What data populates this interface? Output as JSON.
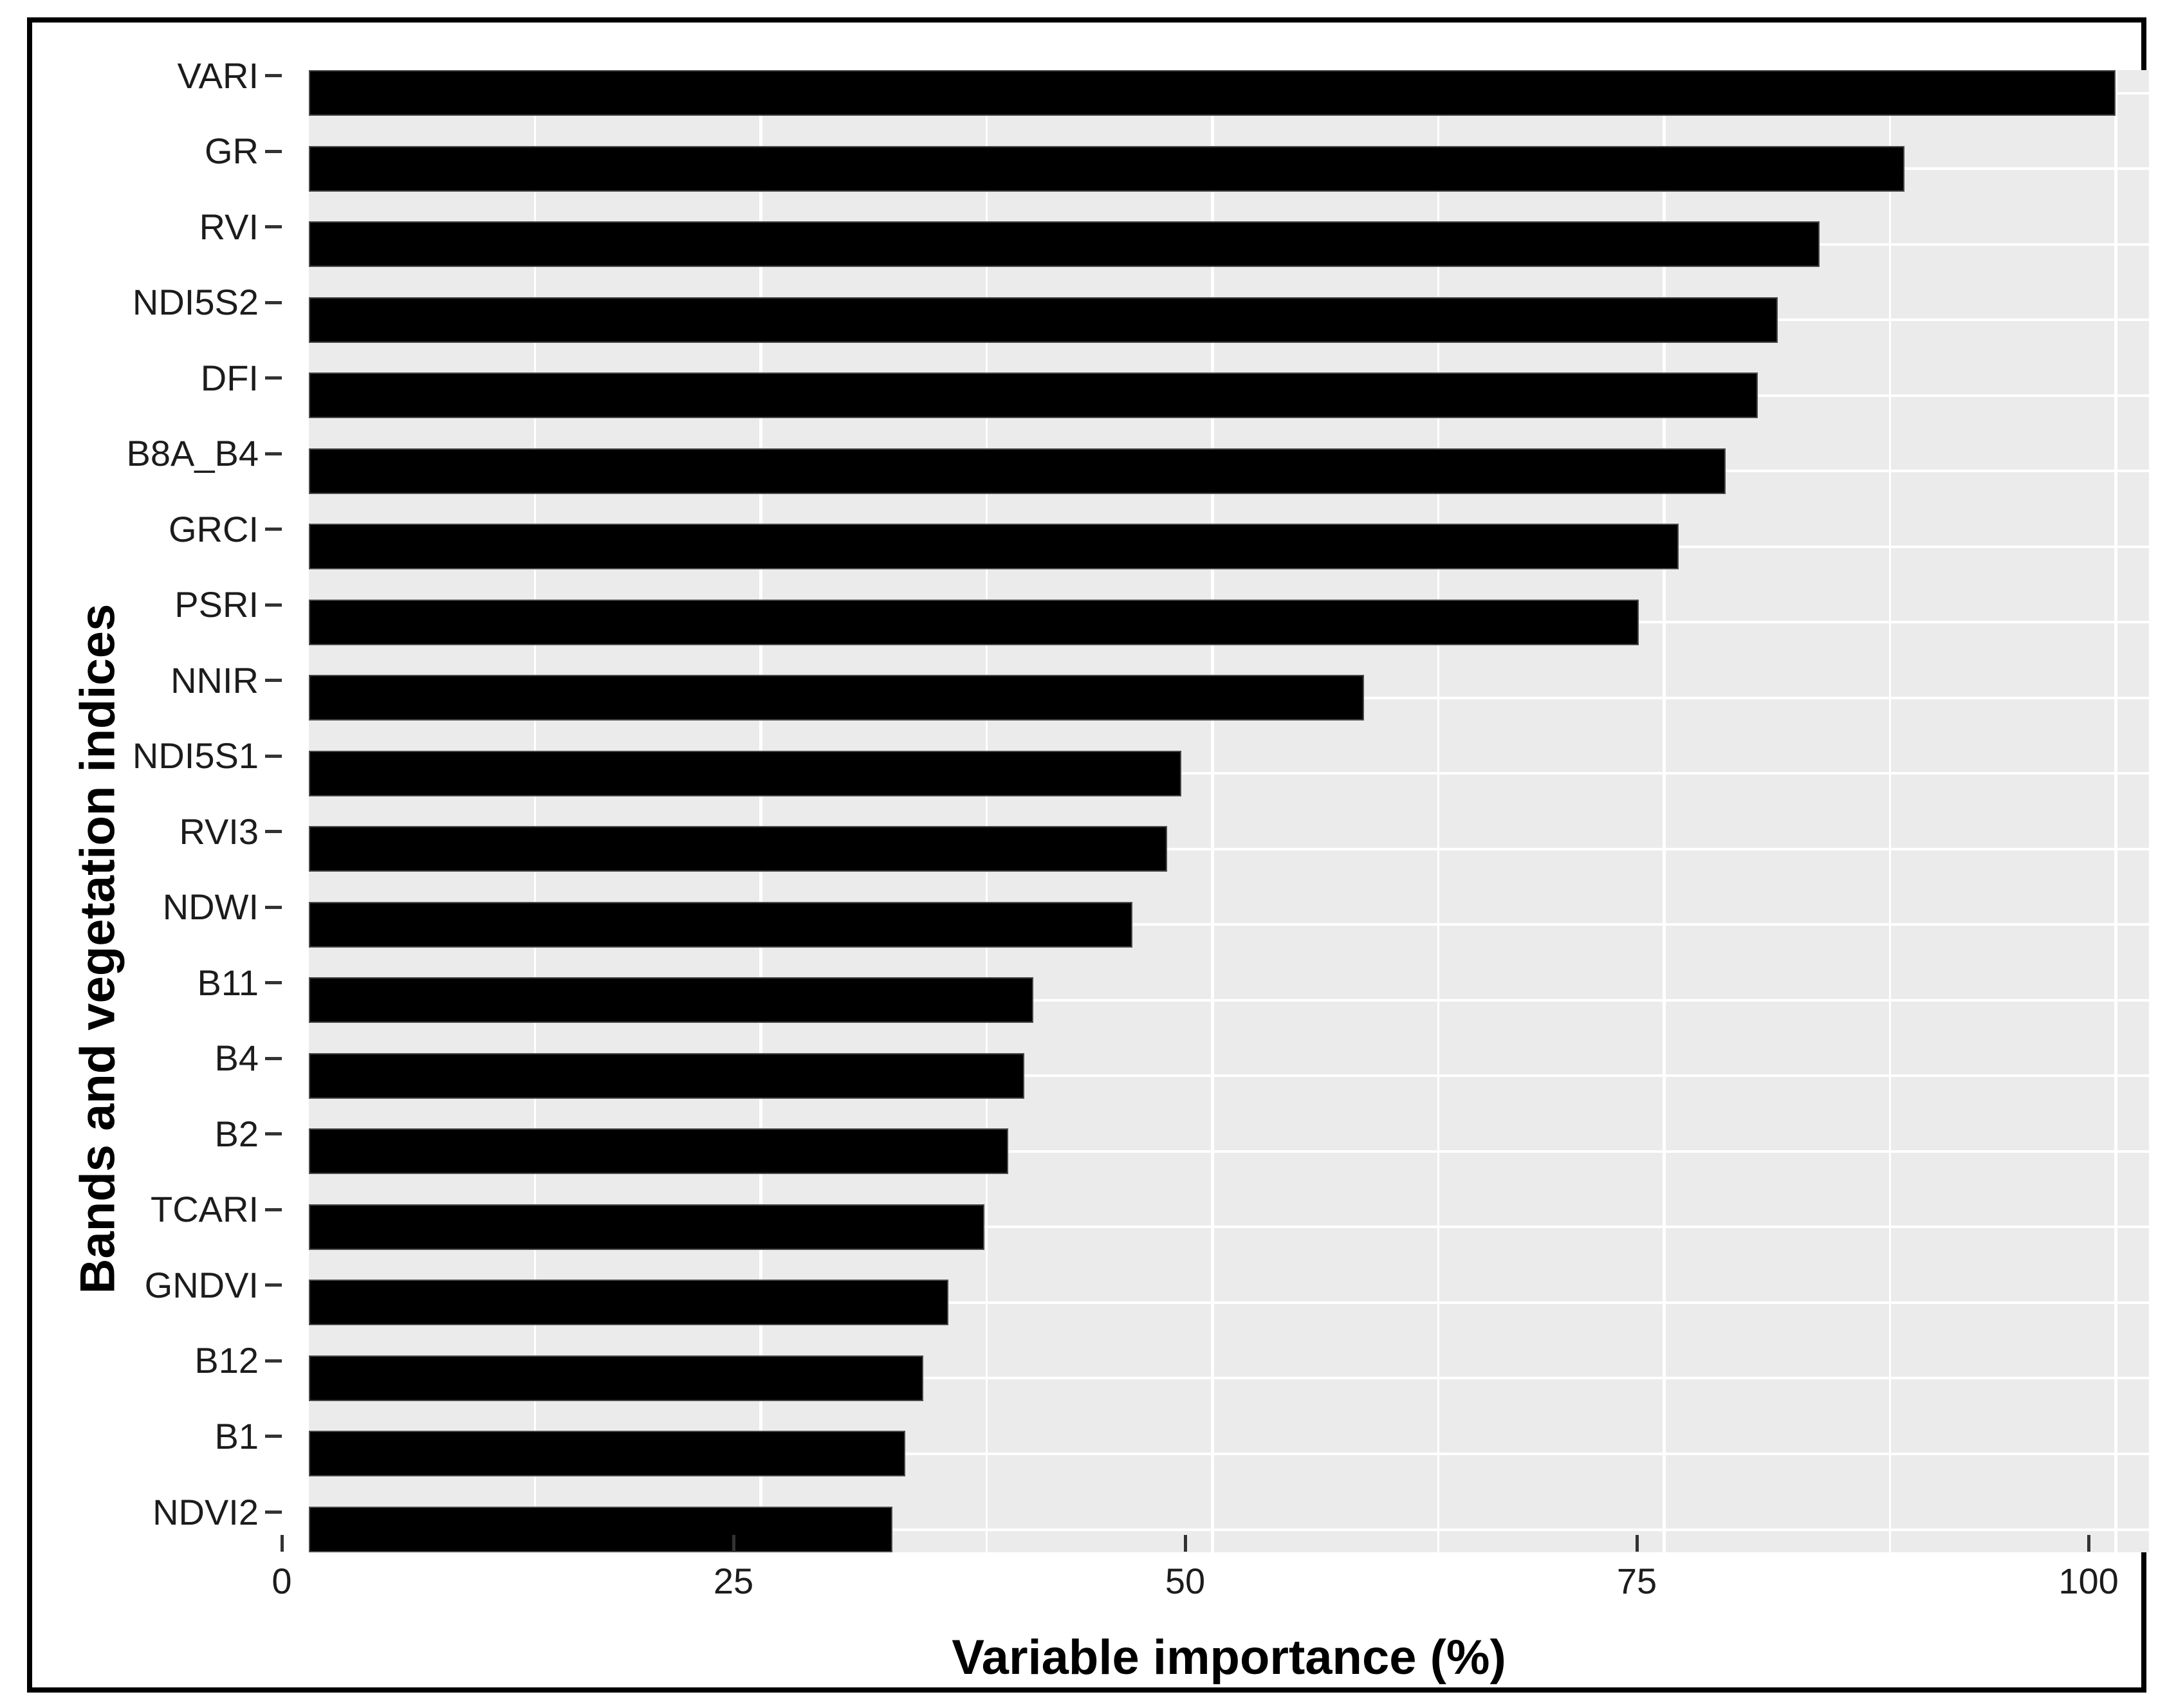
{
  "chart_data": {
    "type": "bar",
    "orientation": "horizontal",
    "title": "",
    "xlabel": "Variable importance (%)",
    "ylabel": "Bands and vegetation indices",
    "categories": [
      "VARI",
      "GR",
      "RVI",
      "NDI5S2",
      "DFI",
      "B8A_B4",
      "GRCI",
      "PSRI",
      "NNIR",
      "NDI5S1",
      "RVI3",
      "NDWI",
      "B11",
      "B4",
      "B2",
      "TCARI",
      "GNDVI",
      "B12",
      "B1",
      "NDVI2"
    ],
    "values": [
      100,
      88.3,
      83.6,
      81.3,
      80.2,
      78.4,
      75.8,
      73.6,
      58.4,
      48.3,
      47.5,
      45.6,
      40.1,
      39.6,
      38.7,
      37.4,
      35.4,
      34.0,
      33.0,
      32.3
    ],
    "x_ticks": [
      0,
      25,
      50,
      75,
      100
    ],
    "x_tick_labels": [
      "0",
      "25",
      "50",
      "75",
      "100"
    ],
    "x_minor_gridlines": [
      12.5,
      37.5,
      62.5,
      87.5
    ],
    "xlim": [
      0,
      101.85
    ],
    "grid": true,
    "legend_position": "none",
    "colors": {
      "bar_fill": "#000000",
      "panel_background": "#EBEBEB",
      "gridline": "#FFFFFF",
      "tick_mark": "#333333",
      "tick_label": "#1C1C1C",
      "axis_title": "#000000",
      "figure_border": "#000000",
      "figure_background": "#FFFFFF"
    }
  }
}
